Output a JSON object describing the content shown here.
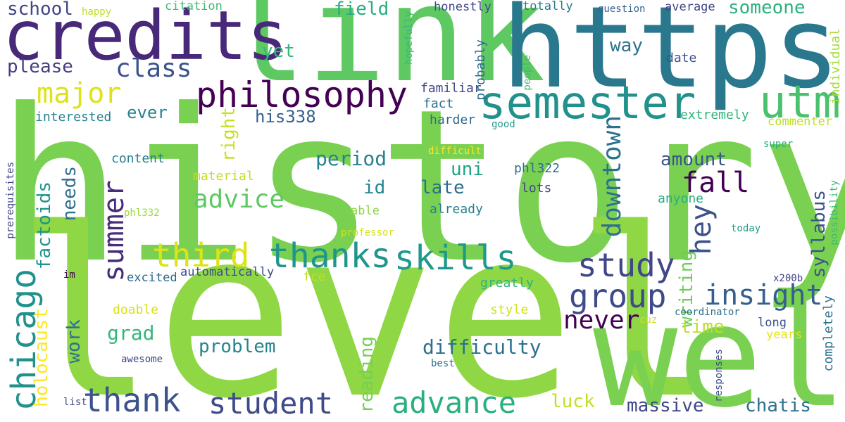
{
  "words": [
    {
      "id": "history",
      "text": "history",
      "color": "#7ad151"
    },
    {
      "id": "level",
      "text": "level",
      "color": "#8fd744"
    },
    {
      "id": "well",
      "text": "well",
      "color": "#7ad151"
    },
    {
      "id": "link",
      "text": "link",
      "color": "#5ec962"
    },
    {
      "id": "https",
      "text": "https",
      "color": "#2a788e"
    },
    {
      "id": "credits",
      "text": "credits",
      "color": "#482878"
    },
    {
      "id": "semester",
      "text": "semester",
      "color": "#21918c"
    },
    {
      "id": "utm",
      "text": "utm",
      "color": "#4ac16d"
    },
    {
      "id": "philosophy",
      "text": "philosophy",
      "color": "#440154"
    },
    {
      "id": "major",
      "text": "major",
      "color": "#dde318"
    },
    {
      "id": "class",
      "text": "class",
      "color": "#3b528b"
    },
    {
      "id": "school",
      "text": "school",
      "color": "#414487"
    },
    {
      "id": "please",
      "text": "please",
      "color": "#433e85"
    },
    {
      "id": "yet",
      "text": "yet",
      "color": "#35b779"
    },
    {
      "id": "field",
      "text": "field",
      "color": "#27ad81"
    },
    {
      "id": "someone",
      "text": "someone",
      "color": "#2db27d"
    },
    {
      "id": "way",
      "text": "way",
      "color": "#2c728e"
    },
    {
      "id": "date",
      "text": "date",
      "color": "#3b528b"
    },
    {
      "id": "average",
      "text": "average",
      "color": "#404688"
    },
    {
      "id": "honestly",
      "text": "honestly",
      "color": "#3f4788"
    },
    {
      "id": "totally",
      "text": "totally",
      "color": "#2a788e"
    },
    {
      "id": "question",
      "text": "question",
      "color": "#33638d"
    },
    {
      "id": "happy",
      "text": "happy",
      "color": "#bddf26"
    },
    {
      "id": "citation",
      "text": "citation",
      "color": "#3dbc74"
    },
    {
      "id": "hopefully",
      "text": "hopefully",
      "color": "#38b977"
    },
    {
      "id": "probably",
      "text": "probably",
      "color": "#2f6c8e"
    },
    {
      "id": "people",
      "text": "people",
      "color": "#3aba76"
    },
    {
      "id": "individual",
      "text": "individual",
      "color": "#a5db36"
    },
    {
      "id": "familiar",
      "text": "familiar",
      "color": "#3f4889"
    },
    {
      "id": "fact",
      "text": "fact",
      "color": "#2d708e"
    },
    {
      "id": "harder",
      "text": "harder",
      "color": "#31678e"
    },
    {
      "id": "good",
      "text": "good",
      "color": "#1f9e89"
    },
    {
      "id": "ever",
      "text": "ever",
      "color": "#25848e"
    },
    {
      "id": "interested",
      "text": "interested",
      "color": "#26828e"
    },
    {
      "id": "his338",
      "text": "his338",
      "color": "#355f8d"
    },
    {
      "id": "extremely",
      "text": "extremely",
      "color": "#2fb47c"
    },
    {
      "id": "commenter",
      "text": "commenter",
      "color": "#bddf26"
    },
    {
      "id": "super",
      "text": "super",
      "color": "#2ab07f"
    },
    {
      "id": "difficult",
      "text": "difficult",
      "color": "#fde725"
    },
    {
      "id": "content",
      "text": "content",
      "color": "#277f8e"
    },
    {
      "id": "period",
      "text": "period",
      "color": "#26828e"
    },
    {
      "id": "right",
      "text": "right",
      "color": "#c8e020"
    },
    {
      "id": "downtown",
      "text": "downtown",
      "color": "#2c728e"
    },
    {
      "id": "amount",
      "text": "amount",
      "color": "#39558c"
    },
    {
      "id": "fall",
      "text": "fall",
      "color": "#440154"
    },
    {
      "id": "uni",
      "text": "uni",
      "color": "#20a386"
    },
    {
      "id": "phl322",
      "text": "phl322",
      "color": "#2e6d8e"
    },
    {
      "id": "prerequisites",
      "text": "prerequisites",
      "color": "#3f4889"
    },
    {
      "id": "possibility",
      "text": "possibility",
      "color": "#3aba76"
    },
    {
      "id": "material",
      "text": "material",
      "color": "#c2df23"
    },
    {
      "id": "id",
      "text": "id",
      "color": "#25858e"
    },
    {
      "id": "late",
      "text": "late",
      "color": "#2e6e8e"
    },
    {
      "id": "lots",
      "text": "lots",
      "color": "#404588"
    },
    {
      "id": "anyone",
      "text": "anyone",
      "color": "#26ad81"
    },
    {
      "id": "advice",
      "text": "advice",
      "color": "#5ec962"
    },
    {
      "id": "needs",
      "text": "needs",
      "color": "#2e6f8e"
    },
    {
      "id": "summer",
      "text": "summer",
      "color": "#472d7b"
    },
    {
      "id": "phl332",
      "text": "phl332",
      "color": "#9bd93c"
    },
    {
      "id": "able",
      "text": "able",
      "color": "#8ed645"
    },
    {
      "id": "already",
      "text": "already",
      "color": "#27808e"
    },
    {
      "id": "hey",
      "text": "hey",
      "color": "#3b528b"
    },
    {
      "id": "syllabus",
      "text": "syllabus",
      "color": "#3b528b"
    },
    {
      "id": "factoids",
      "text": "factoids",
      "color": "#1f948c"
    },
    {
      "id": "third",
      "text": "third",
      "color": "#dde318"
    },
    {
      "id": "professor",
      "text": "professor",
      "color": "#d2e21b"
    },
    {
      "id": "today",
      "text": "today",
      "color": "#1f9e89"
    },
    {
      "id": "thanks",
      "text": "thanks",
      "color": "#1f968b"
    },
    {
      "id": "skills",
      "text": "skills",
      "color": "#1f9a8a"
    },
    {
      "id": "study",
      "text": "study",
      "color": "#404688"
    },
    {
      "id": "writing",
      "text": "writing",
      "color": "#6ece58"
    },
    {
      "id": "chicago",
      "text": "chicago",
      "color": "#21918c"
    },
    {
      "id": "holocaust",
      "text": "holocaust",
      "color": "#fde725"
    },
    {
      "id": "im",
      "text": "im",
      "color": "#440154"
    },
    {
      "id": "automatically",
      "text": "automatically",
      "color": "#3e4989"
    },
    {
      "id": "excited",
      "text": "excited",
      "color": "#31688e"
    },
    {
      "id": "fce",
      "text": "fce",
      "color": "#bddf26"
    },
    {
      "id": "greatly",
      "text": "greatly",
      "color": "#2db27d"
    },
    {
      "id": "group",
      "text": "group",
      "color": "#3e4a89"
    },
    {
      "id": "insight",
      "text": "insight",
      "color": "#355f8d"
    },
    {
      "id": "completely",
      "text": "completely",
      "color": "#2c728e"
    },
    {
      "id": "x200b",
      "text": "x200b",
      "color": "#414487"
    },
    {
      "id": "work",
      "text": "work",
      "color": "#2d708e"
    },
    {
      "id": "doable",
      "text": "doable",
      "color": "#d8e219"
    },
    {
      "id": "style",
      "text": "style",
      "color": "#d2e21b"
    },
    {
      "id": "coordinator",
      "text": "coordinator",
      "color": "#2e6d8e"
    },
    {
      "id": "never",
      "text": "never",
      "color": "#440154"
    },
    {
      "id": "cuz",
      "text": "cuz",
      "color": "#cae11f"
    },
    {
      "id": "long",
      "text": "long",
      "color": "#3b528b"
    },
    {
      "id": "time",
      "text": "time",
      "color": "#bddf26"
    },
    {
      "id": "grad",
      "text": "grad",
      "color": "#35b779"
    },
    {
      "id": "years",
      "text": "years",
      "color": "#e5e419"
    },
    {
      "id": "problem",
      "text": "problem",
      "color": "#25848e"
    },
    {
      "id": "difficulty",
      "text": "difficulty",
      "color": "#2d708e"
    },
    {
      "id": "awesome",
      "text": "awesome",
      "color": "#3f4788"
    },
    {
      "id": "reading",
      "text": "reading",
      "color": "#75d054"
    },
    {
      "id": "best",
      "text": "best",
      "color": "#2c738e"
    },
    {
      "id": "responses",
      "text": "responses",
      "color": "#3e4c8a"
    },
    {
      "id": "list",
      "text": "list",
      "color": "#3f4788"
    },
    {
      "id": "thank",
      "text": "thank",
      "color": "#3b528b"
    },
    {
      "id": "student",
      "text": "student",
      "color": "#3e4a89"
    },
    {
      "id": "advance",
      "text": "advance",
      "color": "#2ab07f"
    },
    {
      "id": "luck",
      "text": "luck",
      "color": "#c2df23"
    },
    {
      "id": "massive",
      "text": "massive",
      "color": "#3f4788"
    },
    {
      "id": "chatis",
      "text": "chatis",
      "color": "#2d708e"
    }
  ]
}
